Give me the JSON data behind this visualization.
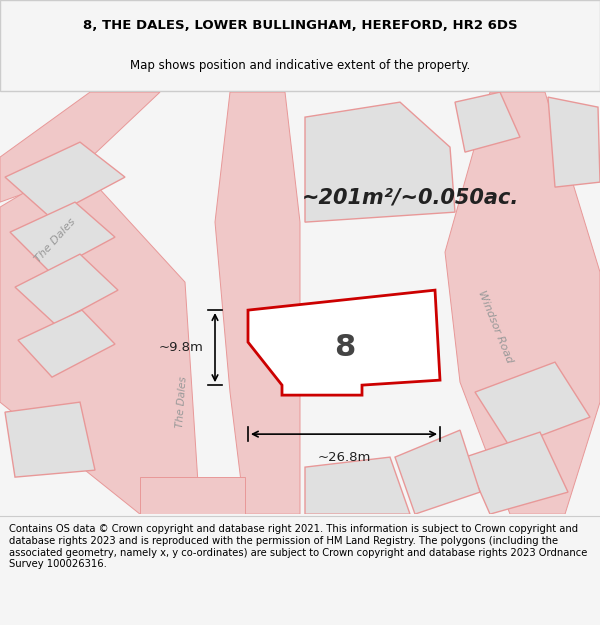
{
  "title_line1": "8, THE DALES, LOWER BULLINGHAM, HEREFORD, HR2 6DS",
  "title_line2": "Map shows position and indicative extent of the property.",
  "area_text": "~201m²/~0.050ac.",
  "plot_number": "8",
  "dim_width": "~26.8m",
  "dim_height": "~9.8m",
  "footer_text": "Contains OS data © Crown copyright and database right 2021. This information is subject to Crown copyright and database rights 2023 and is reproduced with the permission of HM Land Registry. The polygons (including the associated geometry, namely x, y co-ordinates) are subject to Crown copyright and database rights 2023 Ordnance Survey 100026316.",
  "bg_color": "#f5f5f5",
  "map_bg": "#ffffff",
  "road_color": "#f0c8c8",
  "road_outline": "#e89898",
  "plot_fill": "#ffffff",
  "plot_edge": "#cc0000",
  "neighbor_fill": "#e0e0e0",
  "neighbor_edge": "#e89898",
  "road_label_color": "#999999",
  "title_fontsize": 9.5,
  "subtitle_fontsize": 8.5,
  "footer_fontsize": 7.2
}
